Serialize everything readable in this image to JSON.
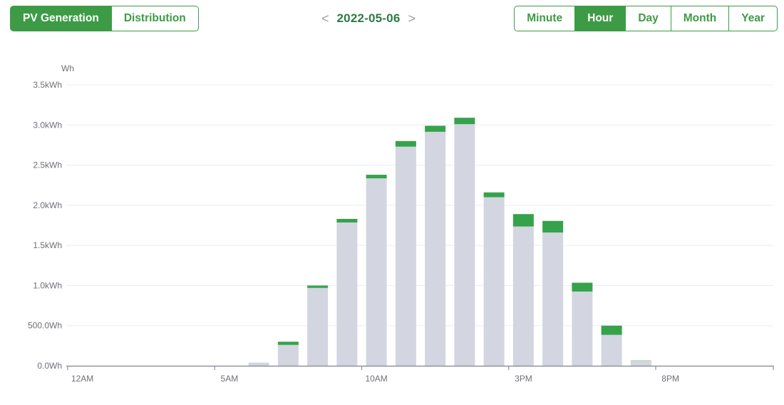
{
  "header": {
    "view_toggle": {
      "options": [
        {
          "label": "PV Generation",
          "active": true
        },
        {
          "label": "Distribution",
          "active": false
        }
      ]
    },
    "date_nav": {
      "prev_label": "<",
      "date": "2022-05-06",
      "next_label": ">"
    },
    "range_toggle": {
      "options": [
        {
          "label": "Minute",
          "active": false
        },
        {
          "label": "Hour",
          "active": true
        },
        {
          "label": "Day",
          "active": false
        },
        {
          "label": "Month",
          "active": false
        },
        {
          "label": "Year",
          "active": false
        }
      ]
    }
  },
  "colors": {
    "accent_green": "#3d9b45",
    "date_green": "#2c7a43",
    "chevron_gray": "#9aa0a6",
    "bar_gray": "#d3d5e1",
    "bar_green": "#36a24b",
    "bar_light_green": "#b9dcb5",
    "axis_text": "#6e7079",
    "gridline": "#e9edf5",
    "axis_line": "#8f949e"
  },
  "chart_data": {
    "type": "bar",
    "stacked": true,
    "title": "",
    "y_axis_name": "Wh",
    "xlabel": "",
    "ylabel": "Wh",
    "ylim": [
      0,
      3500
    ],
    "grid": true,
    "legend": "none",
    "categories": [
      "12AM",
      "1AM",
      "2AM",
      "3AM",
      "4AM",
      "5AM",
      "6AM",
      "7AM",
      "8AM",
      "9AM",
      "10AM",
      "11AM",
      "12PM",
      "1PM",
      "2PM",
      "3PM",
      "4PM",
      "5PM",
      "6PM",
      "7PM",
      "8PM",
      "9PM",
      "10PM",
      "11PM"
    ],
    "x_tick_indices": [
      0,
      5,
      10,
      15,
      20
    ],
    "x_tick_labels_shown": [
      "12AM",
      "5AM",
      "10AM",
      "3PM",
      "8PM"
    ],
    "y_ticks": [
      {
        "value": 0,
        "label": "0.0Wh"
      },
      {
        "value": 500,
        "label": "500.0Wh"
      },
      {
        "value": 1000,
        "label": "1.0kWh"
      },
      {
        "value": 1500,
        "label": "1.5kWh"
      },
      {
        "value": 2000,
        "label": "2.0kWh"
      },
      {
        "value": 2500,
        "label": "2.5kWh"
      },
      {
        "value": 3000,
        "label": "3.0kWh"
      },
      {
        "value": 3500,
        "label": "3.5kWh"
      }
    ],
    "series": [
      {
        "name": "generation-base",
        "color": "#d3d5e1",
        "values": [
          0,
          0,
          0,
          0,
          0,
          0,
          40,
          260,
          970,
          1785,
          2335,
          2730,
          2915,
          3010,
          2100,
          1735,
          1660,
          925,
          385,
          55,
          0,
          0,
          0,
          0
        ]
      },
      {
        "name": "generation-cap",
        "color": "#36a24b",
        "values": [
          0,
          0,
          0,
          0,
          0,
          0,
          0,
          40,
          30,
          45,
          45,
          70,
          75,
          80,
          60,
          155,
          145,
          110,
          115,
          0,
          0,
          0,
          0,
          0
        ]
      },
      {
        "name": "generation-cap-light",
        "color": "#b9dcb5",
        "values": [
          0,
          0,
          0,
          0,
          0,
          0,
          0,
          0,
          0,
          0,
          0,
          0,
          0,
          0,
          0,
          0,
          0,
          0,
          0,
          15,
          0,
          0,
          0,
          0
        ]
      }
    ],
    "hourly_totals_wh": {
      "6AM": 40,
      "7AM": 300,
      "8AM": 1000,
      "9AM": 1830,
      "10AM": 2380,
      "11AM": 2800,
      "12PM": 2990,
      "1PM": 3090,
      "2PM": 2160,
      "3PM": 1890,
      "4PM": 1805,
      "5PM": 1035,
      "6PM": 500,
      "7PM": 70
    }
  }
}
